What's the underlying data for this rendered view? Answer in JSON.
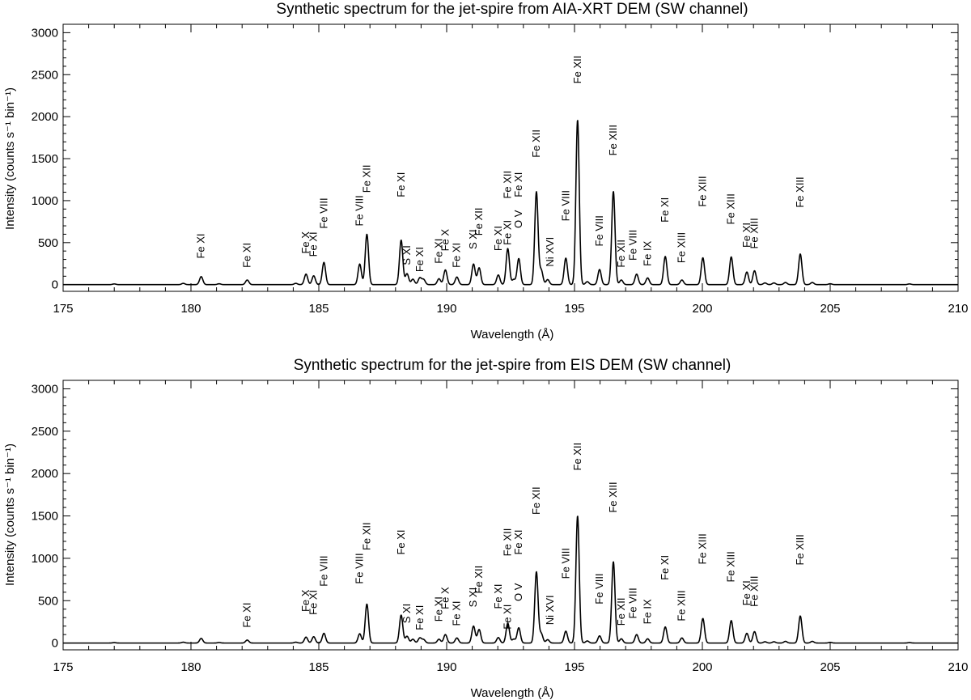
{
  "chart_data": [
    {
      "type": "line",
      "title": "Synthetic spectrum for the jet-spire from AIA-XRT DEM (SW channel)",
      "xlabel": "Wavelength (Å)",
      "ylabel": "Intensity (counts s⁻¹ bin⁻¹)",
      "xlim": [
        175,
        210
      ],
      "ylim": [
        -80,
        3100
      ],
      "x_ticks": [
        175,
        180,
        185,
        190,
        195,
        200,
        205,
        210
      ],
      "y_ticks": [
        0,
        500,
        1000,
        1500,
        2000,
        2500,
        3000
      ],
      "grid": false,
      "peaks": [
        {
          "x": 177.0,
          "y": 8
        },
        {
          "x": 179.7,
          "y": 15
        },
        {
          "x": 180.4,
          "y": 95
        },
        {
          "x": 181.1,
          "y": 10
        },
        {
          "x": 182.2,
          "y": 55
        },
        {
          "x": 184.1,
          "y": 15
        },
        {
          "x": 184.5,
          "y": 125
        },
        {
          "x": 184.8,
          "y": 105
        },
        {
          "x": 185.2,
          "y": 265
        },
        {
          "x": 186.6,
          "y": 245
        },
        {
          "x": 186.88,
          "y": 600
        },
        {
          "x": 188.22,
          "y": 530
        },
        {
          "x": 188.45,
          "y": 130
        },
        {
          "x": 188.68,
          "y": 65
        },
        {
          "x": 188.95,
          "y": 80
        },
        {
          "x": 189.1,
          "y": 60
        },
        {
          "x": 189.7,
          "y": 70
        },
        {
          "x": 189.95,
          "y": 175
        },
        {
          "x": 190.4,
          "y": 90
        },
        {
          "x": 191.05,
          "y": 245
        },
        {
          "x": 191.27,
          "y": 200
        },
        {
          "x": 192.02,
          "y": 115
        },
        {
          "x": 192.39,
          "y": 430
        },
        {
          "x": 192.62,
          "y": 60
        },
        {
          "x": 192.82,
          "y": 310
        },
        {
          "x": 193.51,
          "y": 1105
        },
        {
          "x": 193.7,
          "y": 170
        },
        {
          "x": 193.95,
          "y": 60
        },
        {
          "x": 194.66,
          "y": 315
        },
        {
          "x": 195.12,
          "y": 1960
        },
        {
          "x": 195.5,
          "y": 35
        },
        {
          "x": 195.98,
          "y": 180
        },
        {
          "x": 196.52,
          "y": 1110
        },
        {
          "x": 196.83,
          "y": 55
        },
        {
          "x": 197.43,
          "y": 125
        },
        {
          "x": 197.86,
          "y": 80
        },
        {
          "x": 198.55,
          "y": 335
        },
        {
          "x": 199.2,
          "y": 55
        },
        {
          "x": 200.02,
          "y": 320
        },
        {
          "x": 201.13,
          "y": 330
        },
        {
          "x": 201.74,
          "y": 150
        },
        {
          "x": 202.04,
          "y": 165
        },
        {
          "x": 202.45,
          "y": 20
        },
        {
          "x": 202.8,
          "y": 20
        },
        {
          "x": 203.25,
          "y": 25
        },
        {
          "x": 203.83,
          "y": 365
        },
        {
          "x": 204.3,
          "y": 25
        },
        {
          "x": 205.0,
          "y": 10
        },
        {
          "x": 208.1,
          "y": 8
        }
      ],
      "line_labels": [
        {
          "text": "Fe XI",
          "x": 180.4,
          "y": 460
        },
        {
          "text": "Fe XI",
          "x": 182.2,
          "y": 350
        },
        {
          "text": "Fe X",
          "x": 184.5,
          "y": 500
        },
        {
          "text": "Fe XI",
          "x": 184.8,
          "y": 480
        },
        {
          "text": "Fe VIII",
          "x": 185.2,
          "y": 850
        },
        {
          "text": "Fe VIII",
          "x": 186.6,
          "y": 880
        },
        {
          "text": "Fe XII",
          "x": 186.88,
          "y": 1260
        },
        {
          "text": "Fe XI",
          "x": 188.22,
          "y": 1190
        },
        {
          "text": "S XI",
          "x": 188.45,
          "y": 350
        },
        {
          "text": "Fe XI",
          "x": 188.95,
          "y": 300
        },
        {
          "text": "Fe XI",
          "x": 189.7,
          "y": 400
        },
        {
          "text": "Fe X",
          "x": 189.95,
          "y": 530
        },
        {
          "text": "Fe XI",
          "x": 190.4,
          "y": 350
        },
        {
          "text": "S XI",
          "x": 191.05,
          "y": 540
        },
        {
          "text": "Fe XII",
          "x": 191.27,
          "y": 750
        },
        {
          "text": "Fe XI",
          "x": 192.02,
          "y": 550
        },
        {
          "text": "Fe XI",
          "x": 192.39,
          "y": 620
        },
        {
          "text": "Fe XII",
          "x": 192.39,
          "y": 1190
        },
        {
          "text": "O V",
          "x": 192.82,
          "y": 780
        },
        {
          "text": "Fe XI",
          "x": 192.82,
          "y": 1190
        },
        {
          "text": "Fe XII",
          "x": 193.51,
          "y": 1680
        },
        {
          "text": "Ni XVI",
          "x": 194.05,
          "y": 390
        },
        {
          "text": "Fe VIII",
          "x": 194.66,
          "y": 940
        },
        {
          "text": "Fe XII",
          "x": 195.12,
          "y": 2560
        },
        {
          "text": "Fe VIII",
          "x": 195.98,
          "y": 640
        },
        {
          "text": "Fe XIII",
          "x": 196.52,
          "y": 1720
        },
        {
          "text": "Fe XII",
          "x": 196.83,
          "y": 370
        },
        {
          "text": "Fe VIII",
          "x": 197.3,
          "y": 470
        },
        {
          "text": "Fe IX",
          "x": 197.86,
          "y": 370
        },
        {
          "text": "Fe XI",
          "x": 198.55,
          "y": 890
        },
        {
          "text": "Fe XIII",
          "x": 199.2,
          "y": 440
        },
        {
          "text": "Fe XIII",
          "x": 200.02,
          "y": 1110
        },
        {
          "text": "Fe XIII",
          "x": 201.13,
          "y": 900
        },
        {
          "text": "Fe XI",
          "x": 201.74,
          "y": 590
        },
        {
          "text": "Fe XIII",
          "x": 202.04,
          "y": 610
        },
        {
          "text": "Fe XIII",
          "x": 203.83,
          "y": 1100
        }
      ]
    },
    {
      "type": "line",
      "title": "Synthetic spectrum for the jet-spire from EIS DEM (SW channel)",
      "xlabel": "Wavelength (Å)",
      "ylabel": "Intensity (counts s⁻¹ bin⁻¹)",
      "xlim": [
        175,
        210
      ],
      "ylim": [
        -80,
        3100
      ],
      "x_ticks": [
        175,
        180,
        185,
        190,
        195,
        200,
        205,
        210
      ],
      "y_ticks": [
        0,
        500,
        1000,
        1500,
        2000,
        2500,
        3000
      ],
      "grid": false,
      "peaks": [
        {
          "x": 177.0,
          "y": 5
        },
        {
          "x": 179.7,
          "y": 10
        },
        {
          "x": 180.4,
          "y": 55
        },
        {
          "x": 181.1,
          "y": 6
        },
        {
          "x": 182.2,
          "y": 35
        },
        {
          "x": 184.1,
          "y": 10
        },
        {
          "x": 184.5,
          "y": 70
        },
        {
          "x": 184.8,
          "y": 75
        },
        {
          "x": 185.2,
          "y": 115
        },
        {
          "x": 186.6,
          "y": 110
        },
        {
          "x": 186.88,
          "y": 460
        },
        {
          "x": 188.22,
          "y": 330
        },
        {
          "x": 188.45,
          "y": 80
        },
        {
          "x": 188.68,
          "y": 45
        },
        {
          "x": 188.95,
          "y": 60
        },
        {
          "x": 189.1,
          "y": 40
        },
        {
          "x": 189.7,
          "y": 45
        },
        {
          "x": 189.95,
          "y": 100
        },
        {
          "x": 190.4,
          "y": 60
        },
        {
          "x": 191.05,
          "y": 200
        },
        {
          "x": 191.27,
          "y": 160
        },
        {
          "x": 192.02,
          "y": 65
        },
        {
          "x": 192.39,
          "y": 235
        },
        {
          "x": 192.62,
          "y": 45
        },
        {
          "x": 192.82,
          "y": 180
        },
        {
          "x": 193.51,
          "y": 840
        },
        {
          "x": 193.7,
          "y": 110
        },
        {
          "x": 193.95,
          "y": 40
        },
        {
          "x": 194.66,
          "y": 140
        },
        {
          "x": 195.12,
          "y": 1500
        },
        {
          "x": 195.5,
          "y": 25
        },
        {
          "x": 195.98,
          "y": 85
        },
        {
          "x": 196.52,
          "y": 960
        },
        {
          "x": 196.83,
          "y": 50
        },
        {
          "x": 197.43,
          "y": 100
        },
        {
          "x": 197.86,
          "y": 50
        },
        {
          "x": 198.55,
          "y": 190
        },
        {
          "x": 199.2,
          "y": 60
        },
        {
          "x": 200.02,
          "y": 290
        },
        {
          "x": 201.13,
          "y": 265
        },
        {
          "x": 201.74,
          "y": 115
        },
        {
          "x": 202.04,
          "y": 135
        },
        {
          "x": 202.45,
          "y": 15
        },
        {
          "x": 202.8,
          "y": 15
        },
        {
          "x": 203.25,
          "y": 20
        },
        {
          "x": 203.83,
          "y": 320
        },
        {
          "x": 204.3,
          "y": 20
        },
        {
          "x": 205.0,
          "y": 8
        },
        {
          "x": 208.1,
          "y": 5
        }
      ],
      "line_labels": [
        {
          "text": "Fe XI",
          "x": 182.2,
          "y": 330
        },
        {
          "text": "Fe X",
          "x": 184.5,
          "y": 500
        },
        {
          "text": "Fe XI",
          "x": 184.8,
          "y": 480
        },
        {
          "text": "Fe VIII",
          "x": 185.2,
          "y": 850
        },
        {
          "text": "Fe VIII",
          "x": 186.6,
          "y": 880
        },
        {
          "text": "Fe XII",
          "x": 186.88,
          "y": 1260
        },
        {
          "text": "Fe XI",
          "x": 188.22,
          "y": 1190
        },
        {
          "text": "S XI",
          "x": 188.45,
          "y": 350
        },
        {
          "text": "Fe XI",
          "x": 188.95,
          "y": 300
        },
        {
          "text": "Fe XI",
          "x": 189.7,
          "y": 400
        },
        {
          "text": "Fe X",
          "x": 189.95,
          "y": 530
        },
        {
          "text": "Fe XI",
          "x": 190.4,
          "y": 350
        },
        {
          "text": "S XI",
          "x": 191.05,
          "y": 540
        },
        {
          "text": "Fe XII",
          "x": 191.27,
          "y": 750
        },
        {
          "text": "Fe XI",
          "x": 192.02,
          "y": 550
        },
        {
          "text": "Fe XI",
          "x": 192.39,
          "y": 310
        },
        {
          "text": "Fe XII",
          "x": 192.39,
          "y": 1190
        },
        {
          "text": "O V",
          "x": 192.82,
          "y": 600
        },
        {
          "text": "Fe XI",
          "x": 192.82,
          "y": 1190
        },
        {
          "text": "Fe XII",
          "x": 193.51,
          "y": 1680
        },
        {
          "text": "Ni XVI",
          "x": 194.05,
          "y": 390
        },
        {
          "text": "Fe VIII",
          "x": 194.66,
          "y": 940
        },
        {
          "text": "Fe XII",
          "x": 195.12,
          "y": 2200
        },
        {
          "text": "Fe VIII",
          "x": 195.98,
          "y": 640
        },
        {
          "text": "Fe XIII",
          "x": 196.52,
          "y": 1720
        },
        {
          "text": "Fe XII",
          "x": 196.83,
          "y": 370
        },
        {
          "text": "Fe VIII",
          "x": 197.3,
          "y": 470
        },
        {
          "text": "Fe IX",
          "x": 197.86,
          "y": 370
        },
        {
          "text": "Fe XI",
          "x": 198.55,
          "y": 890
        },
        {
          "text": "Fe XIII",
          "x": 199.2,
          "y": 440
        },
        {
          "text": "Fe XIII",
          "x": 200.02,
          "y": 1110
        },
        {
          "text": "Fe XIII",
          "x": 201.13,
          "y": 900
        },
        {
          "text": "Fe XI",
          "x": 201.74,
          "y": 590
        },
        {
          "text": "Fe XIII",
          "x": 202.04,
          "y": 610
        },
        {
          "text": "Fe XIII",
          "x": 203.83,
          "y": 1100
        }
      ]
    }
  ]
}
